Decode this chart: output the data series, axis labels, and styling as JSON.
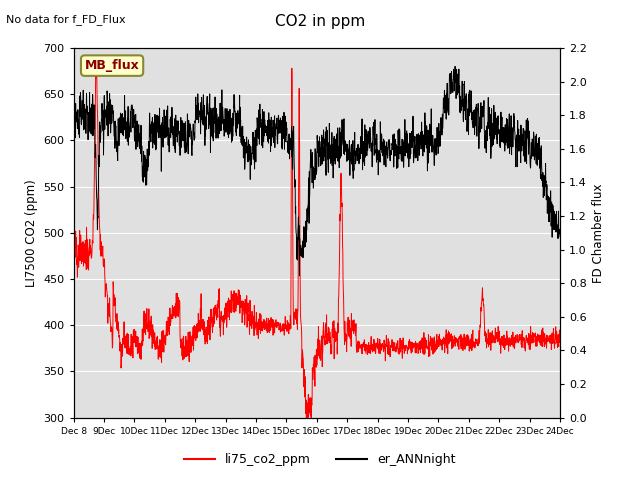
{
  "title": "CO2 in ppm",
  "top_left_text": "No data for f_FD_Flux",
  "ylabel_left": "LI7500 CO2 (ppm)",
  "ylabel_right": "FD Chamber flux",
  "ylim_left": [
    300,
    700
  ],
  "ylim_right": [
    0.0,
    2.2
  ],
  "yticks_left": [
    300,
    350,
    400,
    450,
    500,
    550,
    600,
    650,
    700
  ],
  "yticks_right": [
    0.0,
    0.2,
    0.4,
    0.6,
    0.8,
    1.0,
    1.2,
    1.4,
    1.6,
    1.8,
    2.0,
    2.2
  ],
  "legend_entries": [
    "li75_co2_ppm",
    "er_ANNnight"
  ],
  "legend_colors": [
    "red",
    "black"
  ],
  "mb_flux_label": "MB_flux",
  "plot_bg_color": "#e0e0e0",
  "red_color": "#ff0000",
  "black_color": "#000000",
  "grid_color": "#ffffff",
  "fig_bg": "#ffffff"
}
